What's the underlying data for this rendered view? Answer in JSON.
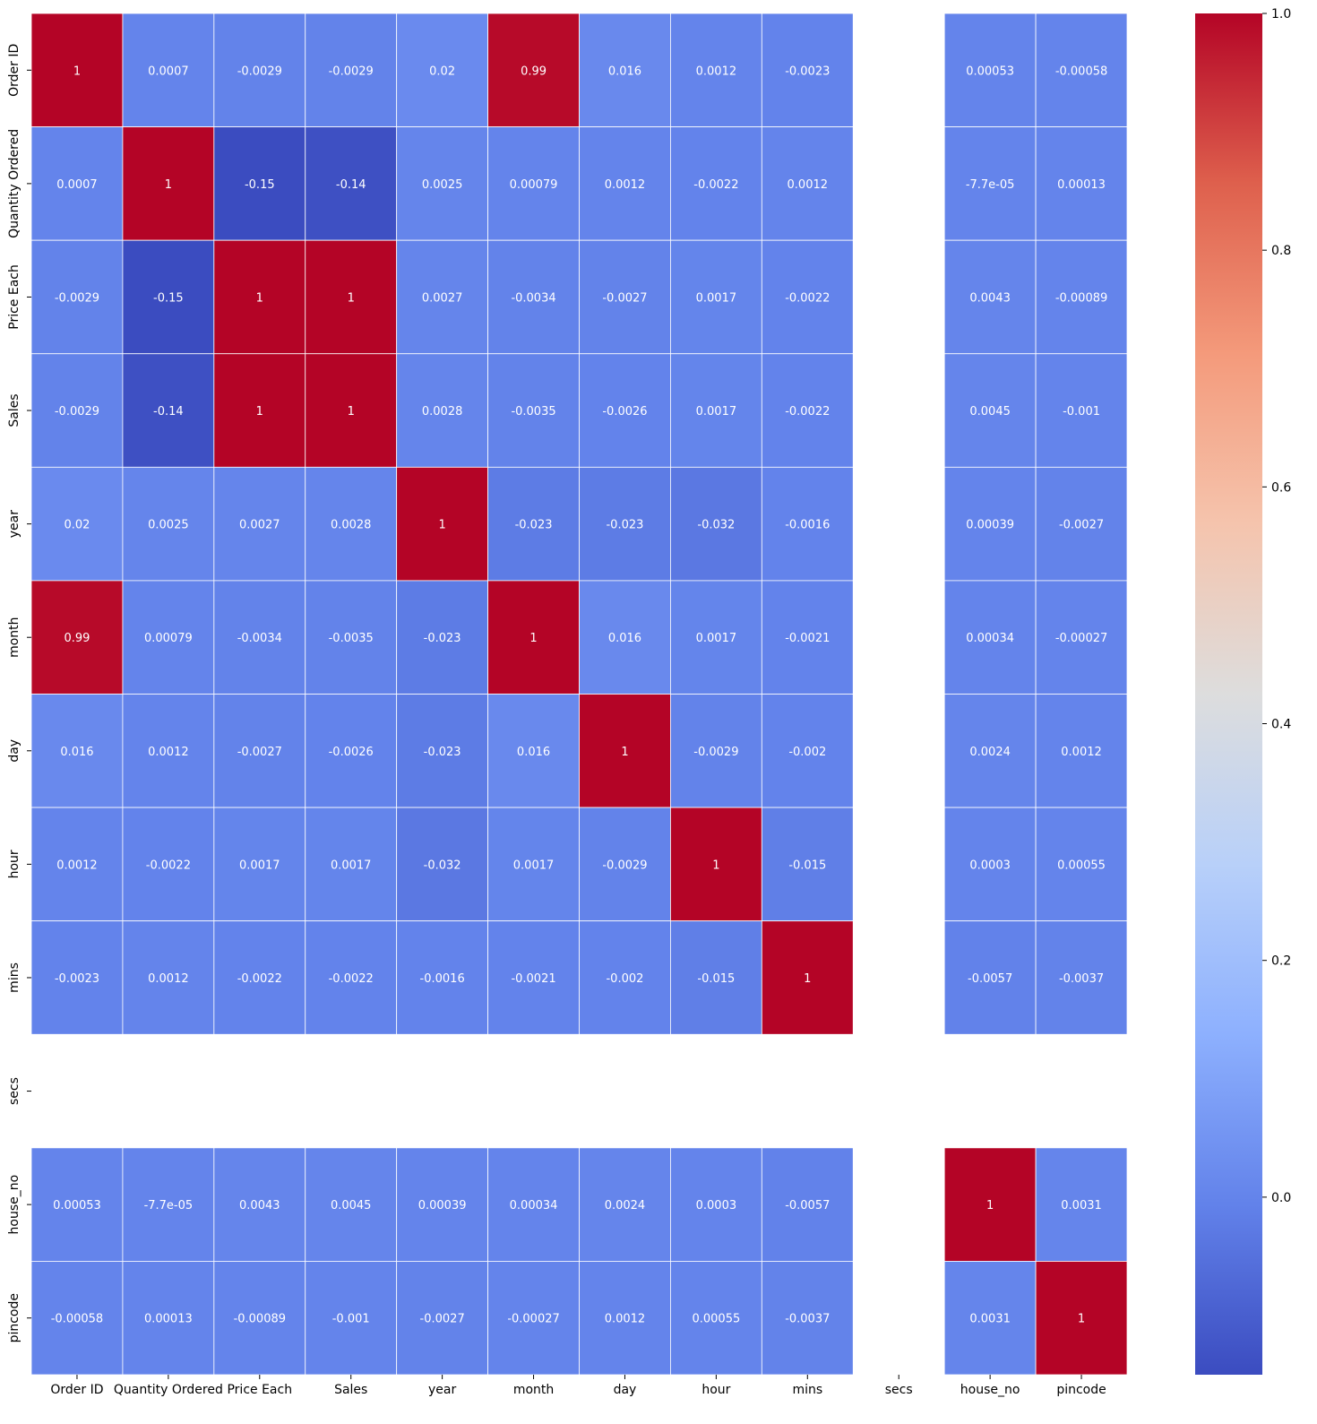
{
  "chart_data": {
    "type": "heatmap",
    "title": "",
    "xlabel": "",
    "ylabel": "",
    "colormap": "coolwarm",
    "value_range": [
      -0.15,
      1.0
    ],
    "linecolor": "#ffffff",
    "colorbar": {
      "ticks": [
        0.0,
        0.2,
        0.4,
        0.6,
        0.8,
        1.0
      ],
      "tick_labels": [
        "0.0",
        "0.2",
        "0.4",
        "0.6",
        "0.8",
        "1.0"
      ]
    },
    "x_labels": [
      "Order ID",
      "Quantity Ordered",
      "Price Each",
      "Sales",
      "year",
      "month",
      "day",
      "hour",
      "mins",
      "secs",
      "house_no",
      "pincode"
    ],
    "y_labels": [
      "Order ID",
      "Quantity Ordered",
      "Price Each",
      "Sales",
      "year",
      "month",
      "day",
      "hour",
      "mins",
      "secs",
      "house_no",
      "pincode"
    ],
    "values": [
      [
        1,
        0.0007,
        -0.0029,
        -0.0029,
        0.02,
        0.99,
        0.016,
        0.0012,
        -0.0023,
        null,
        0.00053,
        -0.00058
      ],
      [
        0.0007,
        1,
        -0.15,
        -0.14,
        0.0025,
        0.00079,
        0.0012,
        -0.0022,
        0.0012,
        null,
        -7.7e-05,
        0.00013
      ],
      [
        -0.0029,
        -0.15,
        1,
        1,
        0.0027,
        -0.0034,
        -0.0027,
        0.0017,
        -0.0022,
        null,
        0.0043,
        -0.00089
      ],
      [
        -0.0029,
        -0.14,
        1,
        1,
        0.0028,
        -0.0035,
        -0.0026,
        0.0017,
        -0.0022,
        null,
        0.0045,
        -0.001
      ],
      [
        0.02,
        0.0025,
        0.0027,
        0.0028,
        1,
        -0.023,
        -0.023,
        -0.032,
        -0.0016,
        null,
        0.00039,
        -0.0027
      ],
      [
        0.99,
        0.00079,
        -0.0034,
        -0.0035,
        -0.023,
        1,
        0.016,
        0.0017,
        -0.0021,
        null,
        0.00034,
        -0.00027
      ],
      [
        0.016,
        0.0012,
        -0.0027,
        -0.0026,
        -0.023,
        0.016,
        1,
        -0.0029,
        -0.002,
        null,
        0.0024,
        0.0012
      ],
      [
        0.0012,
        -0.0022,
        0.0017,
        0.0017,
        -0.032,
        0.0017,
        -0.0029,
        1,
        -0.015,
        null,
        0.0003,
        0.00055
      ],
      [
        -0.0023,
        0.0012,
        -0.0022,
        -0.0022,
        -0.0016,
        -0.0021,
        -0.002,
        -0.015,
        1,
        null,
        -0.0057,
        -0.0037
      ],
      [
        null,
        null,
        null,
        null,
        null,
        null,
        null,
        null,
        null,
        null,
        null,
        null
      ],
      [
        0.00053,
        -7.7e-05,
        0.0043,
        0.0045,
        0.00039,
        0.00034,
        0.0024,
        0.0003,
        -0.0057,
        null,
        1,
        0.0031
      ],
      [
        -0.00058,
        0.00013,
        -0.00089,
        -0.001,
        -0.0027,
        -0.00027,
        0.0012,
        0.00055,
        -0.0037,
        null,
        0.0031,
        1
      ]
    ],
    "annotations": [
      [
        "1",
        "0.0007",
        "-0.0029",
        "-0.0029",
        "0.02",
        "0.99",
        "0.016",
        "0.0012",
        "-0.0023",
        "",
        "0.00053",
        "-0.00058"
      ],
      [
        "0.0007",
        "1",
        "-0.15",
        "-0.14",
        "0.0025",
        "0.00079",
        "0.0012",
        "-0.0022",
        "0.0012",
        "",
        "-7.7e-05",
        "0.00013"
      ],
      [
        "-0.0029",
        "-0.15",
        "1",
        "1",
        "0.0027",
        "-0.0034",
        "-0.0027",
        "0.0017",
        "-0.0022",
        "",
        "0.0043",
        "-0.00089"
      ],
      [
        "-0.0029",
        "-0.14",
        "1",
        "1",
        "0.0028",
        "-0.0035",
        "-0.0026",
        "0.0017",
        "-0.0022",
        "",
        "0.0045",
        "-0.001"
      ],
      [
        "0.02",
        "0.0025",
        "0.0027",
        "0.0028",
        "1",
        "-0.023",
        "-0.023",
        "-0.032",
        "-0.0016",
        "",
        "0.00039",
        "-0.0027"
      ],
      [
        "0.99",
        "0.00079",
        "-0.0034",
        "-0.0035",
        "-0.023",
        "1",
        "0.016",
        "0.0017",
        "-0.0021",
        "",
        "0.00034",
        "-0.00027"
      ],
      [
        "0.016",
        "0.0012",
        "-0.0027",
        "-0.0026",
        "-0.023",
        "0.016",
        "1",
        "-0.0029",
        "-0.002",
        "",
        "0.0024",
        "0.0012"
      ],
      [
        "0.0012",
        "-0.0022",
        "0.0017",
        "0.0017",
        "-0.032",
        "0.0017",
        "-0.0029",
        "1",
        "-0.015",
        "",
        "0.0003",
        "0.00055"
      ],
      [
        "-0.0023",
        "0.0012",
        "-0.0022",
        "-0.0022",
        "-0.0016",
        "-0.0021",
        "-0.002",
        "-0.015",
        "1",
        "",
        "-0.0057",
        "-0.0037"
      ],
      [
        "",
        "",
        "",
        "",
        "",
        "",
        "",
        "",
        "",
        "",
        "",
        ""
      ],
      [
        "0.00053",
        "-7.7e-05",
        "0.0043",
        "0.0045",
        "0.00039",
        "0.00034",
        "0.0024",
        "0.0003",
        "-0.0057",
        "",
        "1",
        "0.0031"
      ],
      [
        "-0.00058",
        "0.00013",
        "-0.00089",
        "-0.001",
        "-0.0027",
        "-0.00027",
        "0.0012",
        "0.00055",
        "-0.0037",
        "",
        "0.0031",
        "1"
      ]
    ]
  }
}
